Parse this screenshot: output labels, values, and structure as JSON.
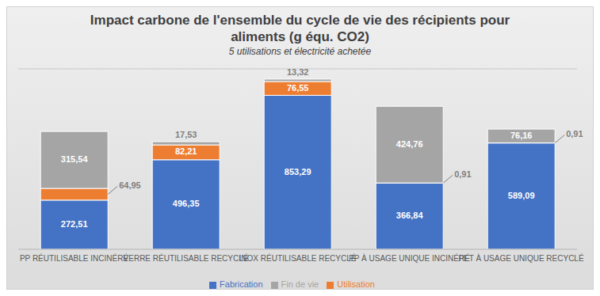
{
  "chart_data": {
    "type": "bar",
    "title": "Impact carbone de l'ensemble du cycle de vie des récipients pour aliments  (g équ. CO2)",
    "subtitle": "5 utilisations et électricité achetée",
    "categories": [
      "PP RÉUTILISABLE INCINÉRÉ",
      "VERRE RÉUTILISABLE RECYCLÉ",
      "INOX RÉUTILISABLE RECYCLÉ",
      "PP À USAGE UNIQUE INCINÉRÉ",
      "PET À USAGE UNIQUE RECYCLÉ"
    ],
    "series": [
      {
        "name": "Fabrication",
        "color": "#4472c4",
        "values": [
          272.51,
          496.35,
          853.29,
          366.84,
          589.09
        ],
        "value_labels": [
          "272,51",
          "496,35",
          "853,29",
          "366,84",
          "589,09"
        ]
      },
      {
        "name": "Utilisation",
        "color": "#ed7d31",
        "values": [
          64.95,
          82.21,
          76.55,
          0.91,
          0.91
        ],
        "value_labels": [
          "64,95",
          "82,21",
          "76,55",
          "0,91",
          "0,91"
        ]
      },
      {
        "name": "Fin de vie",
        "color": "#a5a5a5",
        "values": [
          315.54,
          17.53,
          13.32,
          424.76,
          76.16
        ],
        "value_labels": [
          "315,54",
          "17,53",
          "13,32",
          "424,76",
          "76,16"
        ]
      }
    ],
    "stacked": true,
    "data_labels": true,
    "ylim": [
      0,
      1000
    ],
    "yticks": [
      0,
      100,
      200,
      300,
      400,
      500,
      600,
      700,
      800,
      900,
      1000
    ],
    "grid": true,
    "tick_labels": "x",
    "legend": "bottom"
  }
}
